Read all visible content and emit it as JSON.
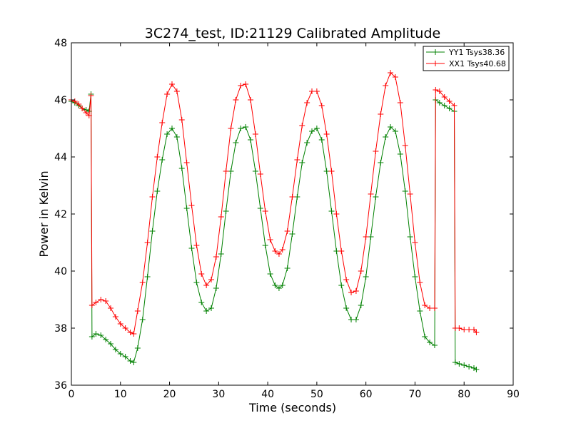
{
  "chart_data": {
    "type": "line",
    "title": "3C274_test, ID:21129 Calibrated Amplitude",
    "xlabel": "Time (seconds)",
    "ylabel": "Power in Kelvin",
    "xlim": [
      0,
      90
    ],
    "ylim": [
      36,
      48
    ],
    "xticks": [
      0,
      10,
      20,
      30,
      40,
      50,
      60,
      70,
      80,
      90
    ],
    "yticks": [
      36,
      38,
      40,
      42,
      44,
      46,
      48
    ],
    "xtick_labels": [
      "0",
      "10",
      "20",
      "30",
      "40",
      "50",
      "60",
      "70",
      "80",
      "90"
    ],
    "ytick_labels": [
      "36",
      "38",
      "40",
      "42",
      "44",
      "46",
      "48"
    ],
    "grid": false,
    "legend_position": "top-right",
    "marker": "+",
    "series": [
      {
        "name": "YY1 Tsys38.36",
        "color": "#008000",
        "points": [
          [
            0.0,
            45.95
          ],
          [
            0.7,
            45.9
          ],
          [
            1.5,
            45.8
          ],
          [
            2.2,
            45.7
          ],
          [
            3.0,
            45.65
          ],
          [
            3.6,
            45.6
          ],
          [
            4.0,
            46.2
          ],
          [
            4.2,
            37.7
          ],
          [
            5.0,
            37.8
          ],
          [
            6.0,
            37.75
          ],
          [
            7.0,
            37.6
          ],
          [
            8.0,
            37.45
          ],
          [
            9.0,
            37.25
          ],
          [
            10.0,
            37.1
          ],
          [
            11.0,
            37.0
          ],
          [
            12.0,
            36.85
          ],
          [
            12.7,
            36.8
          ],
          [
            13.5,
            37.3
          ],
          [
            14.5,
            38.3
          ],
          [
            15.5,
            39.8
          ],
          [
            16.5,
            41.4
          ],
          [
            17.5,
            42.8
          ],
          [
            18.5,
            43.9
          ],
          [
            19.5,
            44.8
          ],
          [
            20.5,
            45.0
          ],
          [
            21.5,
            44.7
          ],
          [
            22.5,
            43.6
          ],
          [
            23.5,
            42.2
          ],
          [
            24.5,
            40.8
          ],
          [
            25.5,
            39.6
          ],
          [
            26.5,
            38.9
          ],
          [
            27.5,
            38.6
          ],
          [
            28.5,
            38.7
          ],
          [
            29.5,
            39.4
          ],
          [
            30.5,
            40.6
          ],
          [
            31.5,
            42.1
          ],
          [
            32.5,
            43.5
          ],
          [
            33.5,
            44.5
          ],
          [
            34.5,
            45.0
          ],
          [
            35.5,
            45.05
          ],
          [
            36.5,
            44.6
          ],
          [
            37.5,
            43.5
          ],
          [
            38.5,
            42.2
          ],
          [
            39.5,
            40.9
          ],
          [
            40.5,
            39.9
          ],
          [
            41.5,
            39.5
          ],
          [
            42.3,
            39.4
          ],
          [
            43.0,
            39.5
          ],
          [
            44.0,
            40.1
          ],
          [
            45.0,
            41.3
          ],
          [
            46.0,
            42.6
          ],
          [
            47.0,
            43.8
          ],
          [
            48.0,
            44.5
          ],
          [
            49.0,
            44.9
          ],
          [
            50.0,
            45.0
          ],
          [
            51.0,
            44.6
          ],
          [
            52.0,
            43.5
          ],
          [
            53.0,
            42.1
          ],
          [
            54.0,
            40.7
          ],
          [
            55.0,
            39.5
          ],
          [
            56.0,
            38.7
          ],
          [
            57.0,
            38.3
          ],
          [
            58.0,
            38.3
          ],
          [
            59.0,
            38.8
          ],
          [
            60.0,
            39.8
          ],
          [
            61.0,
            41.2
          ],
          [
            62.0,
            42.6
          ],
          [
            63.0,
            43.8
          ],
          [
            64.0,
            44.7
          ],
          [
            65.0,
            45.05
          ],
          [
            66.0,
            44.9
          ],
          [
            67.0,
            44.1
          ],
          [
            68.0,
            42.8
          ],
          [
            69.0,
            41.2
          ],
          [
            70.0,
            39.8
          ],
          [
            71.0,
            38.6
          ],
          [
            72.0,
            37.7
          ],
          [
            73.0,
            37.5
          ],
          [
            74.0,
            37.4
          ],
          [
            74.2,
            46.0
          ],
          [
            75.0,
            45.9
          ],
          [
            76.0,
            45.8
          ],
          [
            77.0,
            45.7
          ],
          [
            78.0,
            45.6
          ],
          [
            78.2,
            36.8
          ],
          [
            79.0,
            36.75
          ],
          [
            80.0,
            36.7
          ],
          [
            81.0,
            36.65
          ],
          [
            82.0,
            36.6
          ],
          [
            82.5,
            36.55
          ]
        ]
      },
      {
        "name": "XX1 Tsys40.68",
        "color": "#ff0000",
        "points": [
          [
            0.0,
            46.0
          ],
          [
            0.7,
            45.95
          ],
          [
            1.5,
            45.85
          ],
          [
            2.2,
            45.7
          ],
          [
            3.0,
            45.55
          ],
          [
            3.6,
            45.45
          ],
          [
            4.0,
            46.15
          ],
          [
            4.2,
            38.8
          ],
          [
            5.0,
            38.9
          ],
          [
            6.0,
            39.0
          ],
          [
            7.0,
            38.95
          ],
          [
            8.0,
            38.7
          ],
          [
            9.0,
            38.4
          ],
          [
            10.0,
            38.15
          ],
          [
            11.0,
            38.0
          ],
          [
            12.0,
            37.85
          ],
          [
            12.7,
            37.8
          ],
          [
            13.5,
            38.6
          ],
          [
            14.5,
            39.6
          ],
          [
            15.5,
            41.0
          ],
          [
            16.5,
            42.6
          ],
          [
            17.5,
            44.0
          ],
          [
            18.5,
            45.2
          ],
          [
            19.5,
            46.2
          ],
          [
            20.5,
            46.55
          ],
          [
            21.5,
            46.3
          ],
          [
            22.5,
            45.3
          ],
          [
            23.5,
            43.8
          ],
          [
            24.5,
            42.3
          ],
          [
            25.5,
            40.9
          ],
          [
            26.5,
            39.9
          ],
          [
            27.5,
            39.5
          ],
          [
            28.5,
            39.7
          ],
          [
            29.5,
            40.5
          ],
          [
            30.5,
            41.9
          ],
          [
            31.5,
            43.5
          ],
          [
            32.5,
            45.0
          ],
          [
            33.5,
            46.0
          ],
          [
            34.5,
            46.5
          ],
          [
            35.5,
            46.55
          ],
          [
            36.5,
            46.0
          ],
          [
            37.5,
            44.8
          ],
          [
            38.5,
            43.4
          ],
          [
            39.5,
            42.1
          ],
          [
            40.5,
            41.1
          ],
          [
            41.5,
            40.7
          ],
          [
            42.3,
            40.6
          ],
          [
            43.0,
            40.75
          ],
          [
            44.0,
            41.4
          ],
          [
            45.0,
            42.6
          ],
          [
            46.0,
            43.9
          ],
          [
            47.0,
            45.1
          ],
          [
            48.0,
            45.9
          ],
          [
            49.0,
            46.3
          ],
          [
            50.0,
            46.3
          ],
          [
            51.0,
            45.8
          ],
          [
            52.0,
            44.8
          ],
          [
            53.0,
            43.5
          ],
          [
            54.0,
            42.0
          ],
          [
            55.0,
            40.7
          ],
          [
            56.0,
            39.7
          ],
          [
            57.0,
            39.25
          ],
          [
            58.0,
            39.3
          ],
          [
            59.0,
            40.0
          ],
          [
            60.0,
            41.2
          ],
          [
            61.0,
            42.7
          ],
          [
            62.0,
            44.2
          ],
          [
            63.0,
            45.5
          ],
          [
            64.0,
            46.5
          ],
          [
            65.0,
            46.95
          ],
          [
            66.0,
            46.8
          ],
          [
            67.0,
            45.9
          ],
          [
            68.0,
            44.4
          ],
          [
            69.0,
            42.7
          ],
          [
            70.0,
            41.0
          ],
          [
            71.0,
            39.6
          ],
          [
            72.0,
            38.8
          ],
          [
            73.0,
            38.7
          ],
          [
            74.0,
            38.7
          ],
          [
            74.2,
            46.35
          ],
          [
            75.0,
            46.3
          ],
          [
            76.0,
            46.1
          ],
          [
            77.0,
            45.95
          ],
          [
            78.0,
            45.8
          ],
          [
            78.2,
            38.0
          ],
          [
            79.0,
            38.0
          ],
          [
            80.0,
            37.95
          ],
          [
            81.0,
            37.95
          ],
          [
            82.0,
            37.95
          ],
          [
            82.5,
            37.85
          ]
        ]
      }
    ]
  }
}
